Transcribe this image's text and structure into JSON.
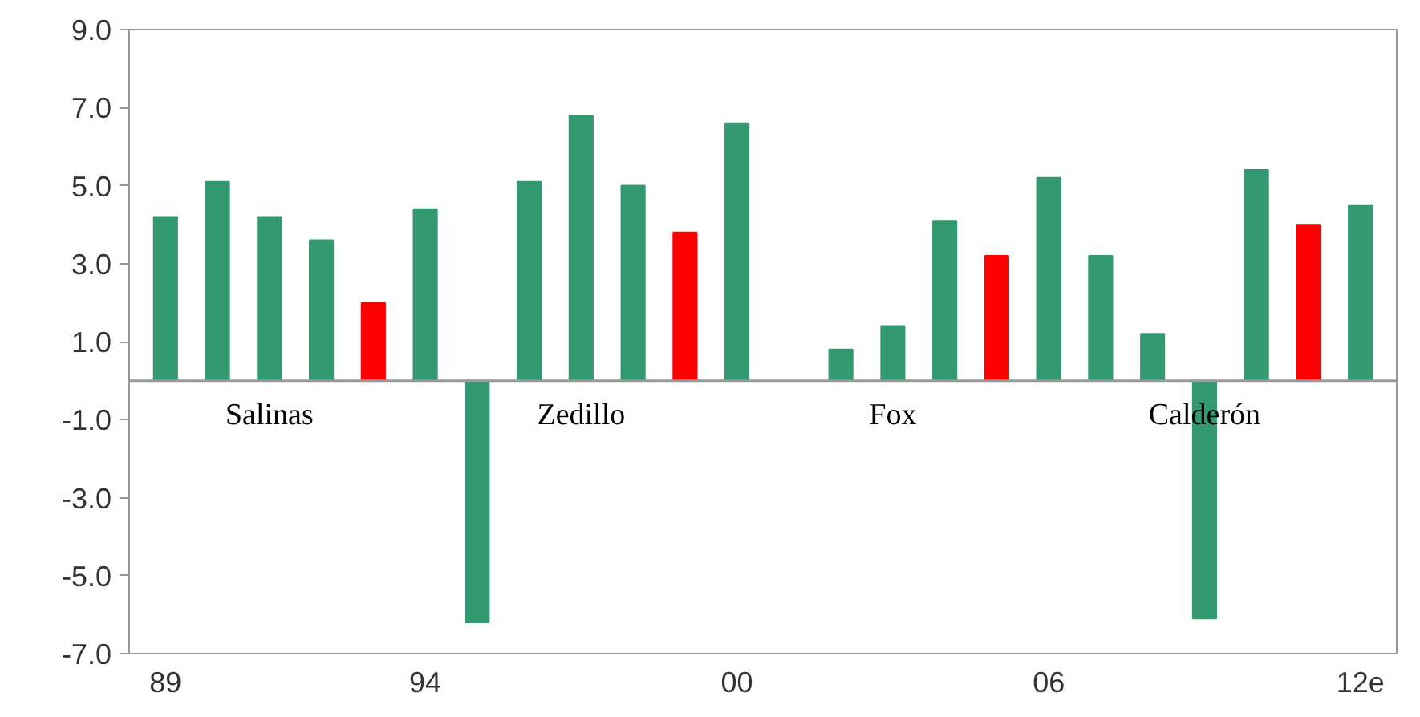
{
  "chart_data": {
    "type": "bar",
    "categories": [
      "89",
      null,
      null,
      null,
      null,
      "94",
      null,
      null,
      null,
      null,
      null,
      "00",
      null,
      null,
      null,
      null,
      null,
      "06",
      null,
      null,
      null,
      null,
      null,
      "12e"
    ],
    "values": [
      4.2,
      5.1,
      4.2,
      3.6,
      2.0,
      4.4,
      -6.2,
      5.1,
      6.8,
      5.0,
      3.8,
      6.6,
      null,
      0.8,
      1.4,
      4.1,
      3.2,
      5.2,
      3.2,
      1.2,
      -6.1,
      5.4,
      4.0,
      4.5
    ],
    "colors": [
      "#339970",
      "#339970",
      "#339970",
      "#339970",
      "#ff0000",
      "#339970",
      "#339970",
      "#339970",
      "#339970",
      "#339970",
      "#ff0000",
      "#339970",
      "#339970",
      "#339970",
      "#339970",
      "#339970",
      "#ff0000",
      "#339970",
      "#339970",
      "#339970",
      "#339970",
      "#339970",
      "#ff0000",
      "#339970"
    ],
    "ylim": [
      -7.0,
      9.0
    ],
    "yticks": [
      {
        "value": 9,
        "label": "9.0"
      },
      {
        "value": 7,
        "label": "7.0"
      },
      {
        "value": 5,
        "label": "5.0"
      },
      {
        "value": 3,
        "label": "3.0"
      },
      {
        "value": 1,
        "label": "1.0"
      },
      {
        "value": -1,
        "label": "-1.0"
      },
      {
        "value": -3,
        "label": "-3.0"
      },
      {
        "value": -5,
        "label": "-5.0"
      },
      {
        "value": -7,
        "label": "-7.0"
      }
    ],
    "grid": false,
    "annotations": [
      "Salinas",
      "Zedillo",
      "Fox",
      "Calderón"
    ]
  }
}
